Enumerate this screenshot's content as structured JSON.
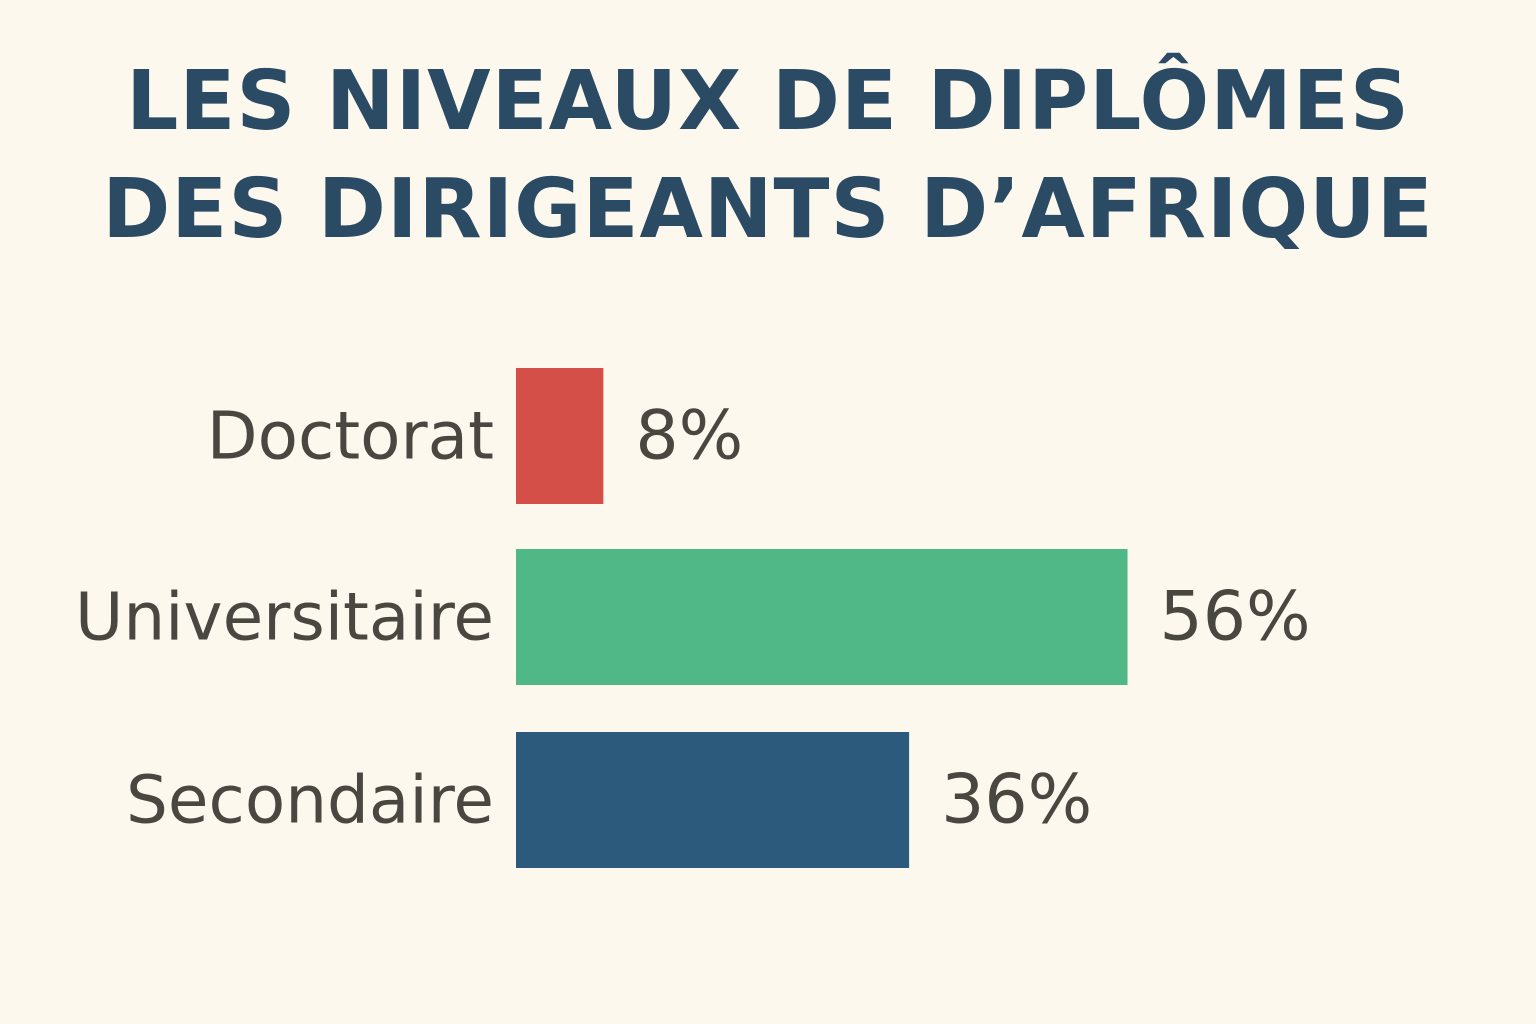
{
  "title_lines": [
    "LES NIVEAUX DE DIPLÔMES",
    "DES DIRIGEANTS D’AFRIQUE"
  ],
  "chart_data": {
    "type": "bar",
    "orientation": "horizontal",
    "title": "LES NIVEAUX DE DIPLÔMES DES DIRIGEANTS D’AFRIQUE",
    "categories": [
      "Doctorat",
      "Universitaire",
      "Secondaire"
    ],
    "values": [
      8,
      56,
      36
    ],
    "value_labels": [
      "8%",
      "56%",
      "36%"
    ],
    "unit": "%",
    "colors": [
      "#d44f47",
      "#50b886",
      "#2b5a7c"
    ],
    "grid": false,
    "legend": "none"
  }
}
